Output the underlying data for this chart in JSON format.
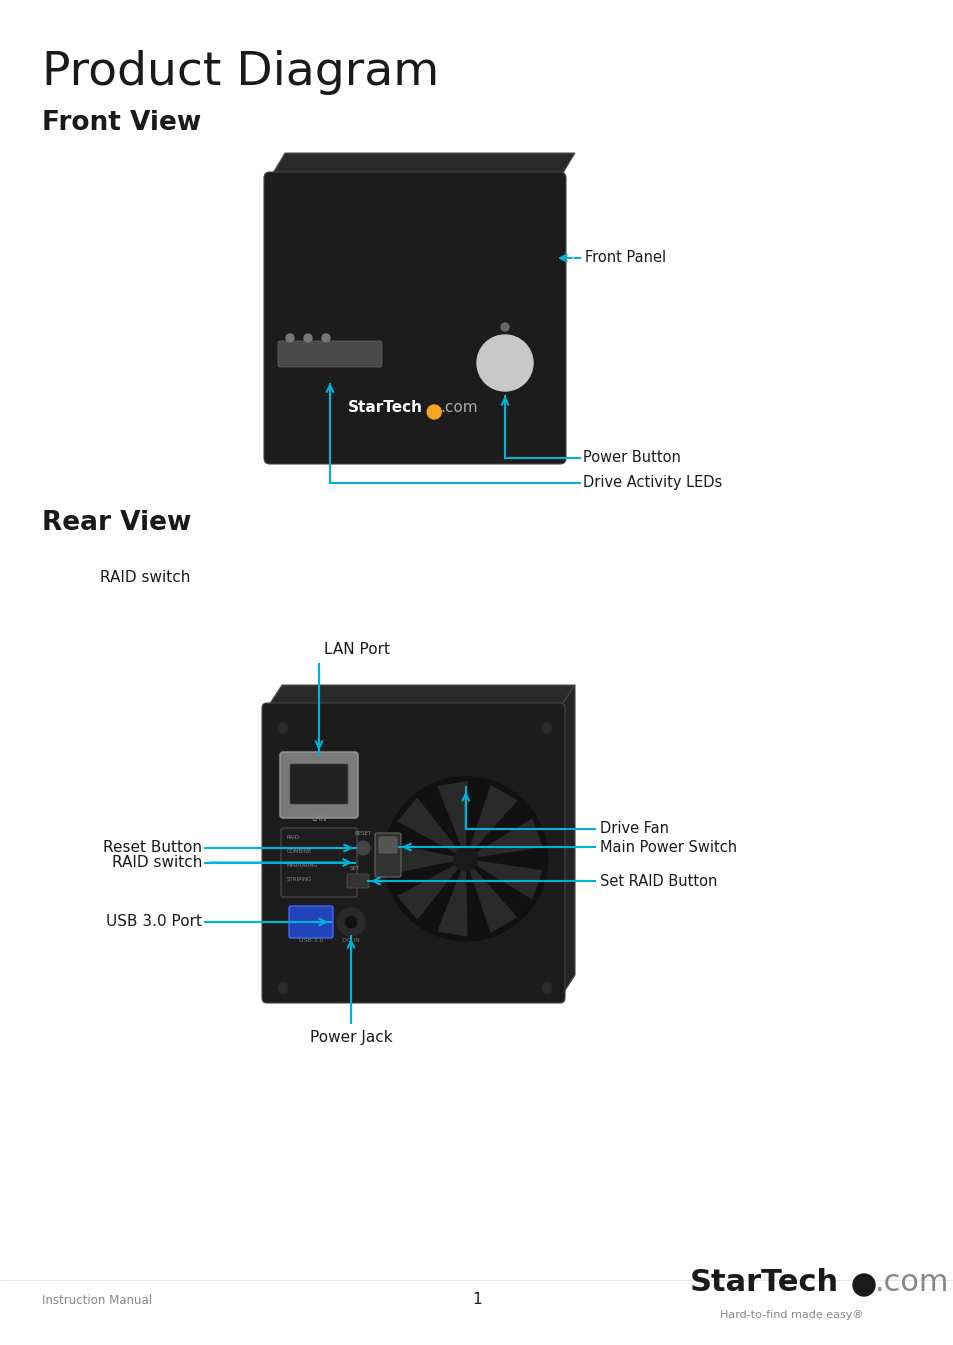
{
  "title": "Product Diagram",
  "subtitle": "Front View",
  "rear_view_title": "Rear View",
  "bg_color": "#ffffff",
  "text_color": "#1a1a1a",
  "callout_color": "#00b4d8",
  "footer_left": "Instruction Manual",
  "footer_center": "1",
  "footer_tagline": "Hard-to-find made easy®"
}
